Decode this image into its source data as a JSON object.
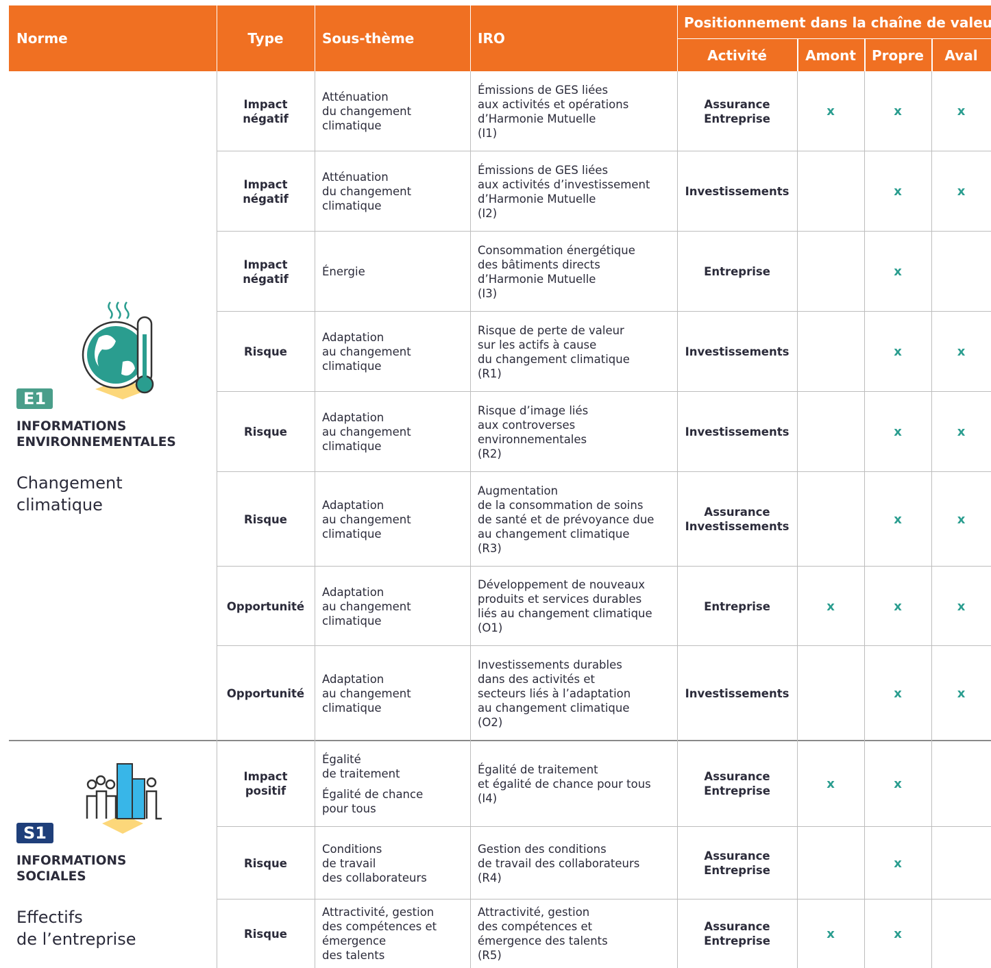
{
  "header": {
    "norme": "Norme",
    "type": "Type",
    "sous_theme": "Sous-thème",
    "iro": "IRO",
    "positionnement": "Positionnement dans la chaîne de valeur",
    "activite": "Activité",
    "amont": "Amont",
    "propre": "Propre",
    "aval": "Aval"
  },
  "groups": [
    {
      "code": "E1",
      "title": [
        "INFORMATIONS",
        "ENVIRONNEMENTALES"
      ],
      "subtitle": [
        "Changement",
        "climatique"
      ],
      "rows": [
        {
          "type": [
            "Impact",
            "négatif"
          ],
          "sous_theme": [
            [
              "Atténuation",
              "du changement",
              "climatique"
            ]
          ],
          "iro": [
            "Émissions de GES liées",
            "aux activités et opérations",
            "d’Harmonie Mutuelle",
            "(I1)"
          ],
          "activite": [
            "Assurance",
            "Entreprise"
          ],
          "amont": "x",
          "propre": "x",
          "aval": "x"
        },
        {
          "type": [
            "Impact",
            "négatif"
          ],
          "sous_theme": [
            [
              "Atténuation",
              "du changement",
              "climatique"
            ]
          ],
          "iro": [
            "Émissions de GES liées",
            "aux activités d’investissement",
            "d’Harmonie Mutuelle",
            "(I2)"
          ],
          "activite": [
            "Investissements"
          ],
          "propre": "x",
          "aval": "x"
        },
        {
          "type": [
            "Impact",
            "négatif"
          ],
          "sous_theme": [
            [
              "Énergie"
            ]
          ],
          "iro": [
            "Consommation énergétique",
            "des bâtiments directs",
            "d’Harmonie Mutuelle",
            "(I3)"
          ],
          "activite": [
            "Entreprise"
          ],
          "propre": "x"
        },
        {
          "type": [
            "Risque"
          ],
          "sous_theme": [
            [
              "Adaptation",
              "au changement",
              "climatique"
            ]
          ],
          "iro": [
            "Risque de perte de valeur",
            "sur les actifs à cause",
            "du changement climatique",
            "(R1)"
          ],
          "activite": [
            "Investissements"
          ],
          "propre": "x",
          "aval": "x"
        },
        {
          "type": [
            "Risque"
          ],
          "sous_theme": [
            [
              "Adaptation",
              "au changement",
              "climatique"
            ]
          ],
          "iro": [
            "Risque d’image liés",
            "aux controverses",
            "environnementales",
            "(R2)"
          ],
          "activite": [
            "Investissements"
          ],
          "propre": "x",
          "aval": "x"
        },
        {
          "type": [
            "Risque"
          ],
          "sous_theme": [
            [
              "Adaptation",
              "au changement",
              "climatique"
            ]
          ],
          "iro": [
            "Augmentation",
            "de la consommation de soins",
            "de santé et de prévoyance due",
            "au changement climatique",
            "(R3)"
          ],
          "activite": [
            "Assurance",
            "Investissements"
          ],
          "propre": "x",
          "aval": "x"
        },
        {
          "type": [
            "Opportunité"
          ],
          "sous_theme": [
            [
              "Adaptation",
              "au changement",
              "climatique"
            ]
          ],
          "iro": [
            "Développement de nouveaux",
            "produits et services durables",
            "liés au changement climatique",
            "(O1)"
          ],
          "activite": [
            "Entreprise"
          ],
          "amont": "x",
          "propre": "x",
          "aval": "x"
        },
        {
          "type": [
            "Opportunité"
          ],
          "sous_theme": [
            [
              "Adaptation",
              "au changement",
              "climatique"
            ]
          ],
          "iro": [
            "Investissements durables",
            "dans des activités et",
            "secteurs liés à l’adaptation",
            "au changement climatique",
            "(O2)"
          ],
          "activite": [
            "Investissements"
          ],
          "propre": "x",
          "aval": "x"
        }
      ]
    },
    {
      "code": "S1",
      "title": [
        "INFORMATIONS",
        "SOCIALES"
      ],
      "subtitle": [
        "Effectifs",
        "de l’entreprise"
      ],
      "rows": [
        {
          "type": [
            "Impact",
            "positif"
          ],
          "sous_theme": [
            [
              "Égalité",
              "de traitement"
            ],
            [
              "Égalité de chance",
              "pour tous"
            ]
          ],
          "iro": [
            "Égalité de traitement",
            "et égalité de chance pour tous",
            "(I4)"
          ],
          "activite": [
            "Assurance",
            "Entreprise"
          ],
          "amont": "x",
          "propre": "x"
        },
        {
          "type": [
            "Risque"
          ],
          "sous_theme": [
            [
              "Conditions",
              "de travail",
              "des collaborateurs"
            ]
          ],
          "iro": [
            "Gestion des conditions",
            "de travail des collaborateurs",
            "(R4)"
          ],
          "activite": [
            "Assurance",
            "Entreprise"
          ],
          "propre": "x"
        },
        {
          "type": [
            "Risque"
          ],
          "sous_theme": [
            [
              "Attractivité, gestion",
              "des compétences et",
              "émergence",
              "des talents"
            ]
          ],
          "iro": [
            "Attractivité, gestion",
            "des compétences et",
            "émergence des talents",
            "(R5)"
          ],
          "activite": [
            "Assurance",
            "Entreprise"
          ],
          "amont": "x",
          "propre": "x"
        }
      ]
    }
  ]
}
